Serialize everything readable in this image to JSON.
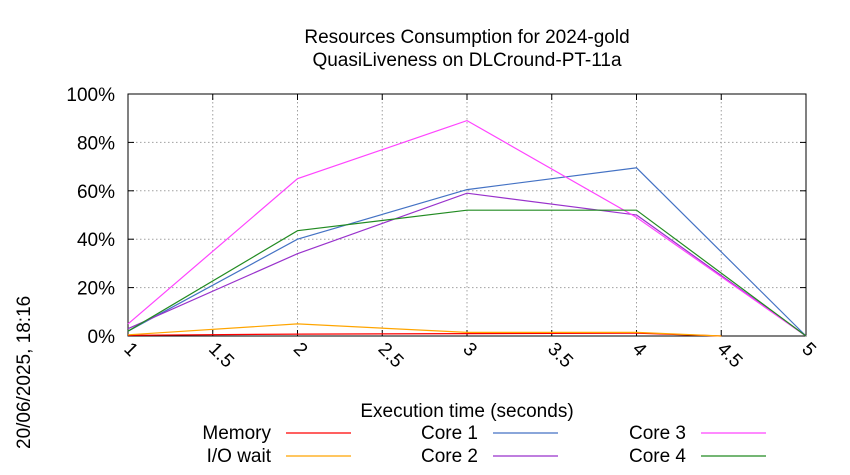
{
  "chart_data": {
    "type": "line",
    "title": "Resources Consumption for 2024-gold",
    "subtitle": "QuasiLiveness on DLCround-PT-11a",
    "xlabel": "Execution time (seconds)",
    "ylabel": "",
    "xlim": [
      1,
      5
    ],
    "ylim": [
      0,
      100
    ],
    "x_ticks": [
      "1",
      "1.5",
      "2",
      "2.5",
      "3",
      "3.5",
      "4",
      "4.5",
      "5"
    ],
    "y_ticks": [
      "0%",
      "20%",
      "40%",
      "60%",
      "80%",
      "100%"
    ],
    "grid": true,
    "legend_position": "bottom",
    "timestamp": "20/06/2025, 18:16",
    "series": [
      {
        "name": "Memory",
        "color": "#ff0000",
        "x": [
          1,
          2,
          3,
          4,
          4.5
        ],
        "y": [
          0.3,
          0.8,
          1.0,
          1.2,
          0
        ]
      },
      {
        "name": "I/O wait",
        "color": "#ffa500",
        "x": [
          1,
          2,
          3,
          4,
          4.5
        ],
        "y": [
          0.5,
          5,
          1.5,
          1.5,
          0
        ]
      },
      {
        "name": "Core 1",
        "color": "#4472c4",
        "x": [
          1,
          2,
          3,
          4,
          5
        ],
        "y": [
          2,
          40,
          60.5,
          69.5,
          0
        ]
      },
      {
        "name": "Core 2",
        "color": "#9932cc",
        "x": [
          1,
          2,
          3,
          4,
          5
        ],
        "y": [
          3,
          34,
          59,
          50,
          0
        ]
      },
      {
        "name": "Core 3",
        "color": "#ff44ff",
        "x": [
          1,
          2,
          3,
          4,
          5
        ],
        "y": [
          5,
          65,
          89,
          49,
          0
        ]
      },
      {
        "name": "Core 4",
        "color": "#228b22",
        "x": [
          1,
          2,
          3,
          4,
          5
        ],
        "y": [
          2,
          43.5,
          52,
          52,
          0
        ]
      }
    ]
  }
}
